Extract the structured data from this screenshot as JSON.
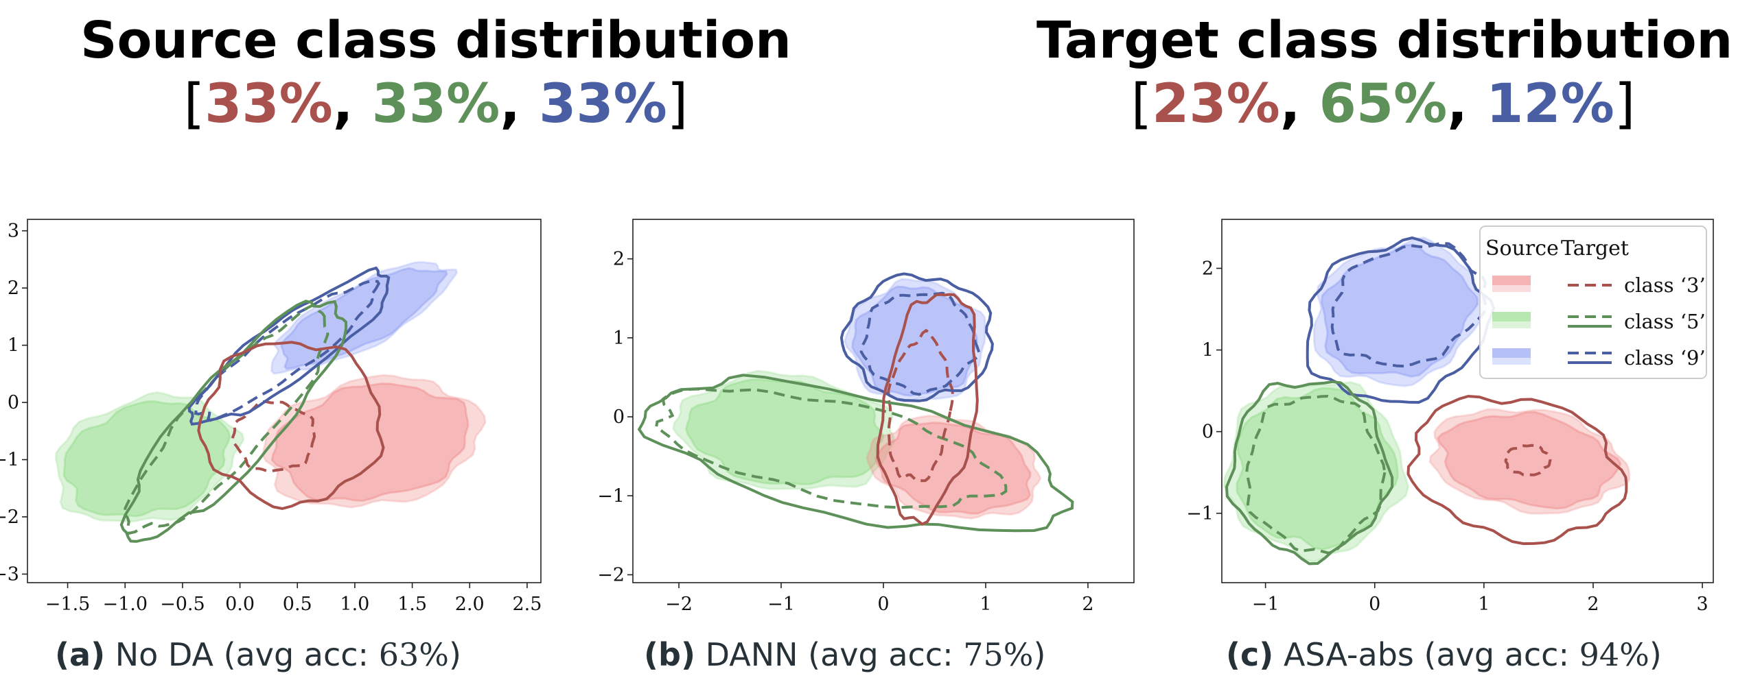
{
  "headings": {
    "source": {
      "title": "Source class distribution",
      "p1": "33%",
      "p2": "33%",
      "p3": "33%"
    },
    "target": {
      "title": "Target class distribution",
      "p1": "23%",
      "p2": "65%",
      "p3": "12%"
    },
    "open_bracket": "[",
    "close_bracket": "]",
    "separator": ","
  },
  "colors": {
    "class3": "#a9524d",
    "class5": "#5e9159",
    "class9": "#4a5fa3",
    "fill3": "#f08a8a",
    "fill5": "#8fdb86",
    "fill9": "#8e9ef5"
  },
  "legend": {
    "source_header": "Source",
    "target_header": "Target",
    "entries": [
      {
        "label": "class ‘3’",
        "color": "class3"
      },
      {
        "label": "class ‘5’",
        "color": "class5"
      },
      {
        "label": "class ‘9’",
        "color": "class9"
      }
    ]
  },
  "captions": {
    "a": {
      "letter": "(a)",
      "name": "No DA",
      "pre": "(avg acc:",
      "value": "63%",
      "post": ")"
    },
    "b": {
      "letter": "(b)",
      "name": "DANN",
      "pre": "(avg acc:",
      "value": "75%",
      "post": ")"
    },
    "c": {
      "letter": "(c)",
      "name": "ASA-abs",
      "pre": "(avg acc:",
      "value": "94%",
      "post": ")"
    }
  },
  "chart_data": [
    {
      "type": "contour",
      "id": "a",
      "xlim": [
        -1.85,
        2.62
      ],
      "ylim": [
        -3.15,
        3.2
      ],
      "xticks": [
        -1.5,
        -1.0,
        -0.5,
        0.0,
        0.5,
        1.0,
        1.5,
        2.0,
        2.5
      ],
      "xtick_labels": [
        "−1.5",
        "−1.0",
        "−0.5",
        "0.0",
        "0.5",
        "1.0",
        "1.5",
        "2.0",
        "2.5"
      ],
      "yticks": [
        -3,
        -2,
        -1,
        0,
        1,
        2,
        3
      ],
      "ytick_labels": [
        "−3",
        "−2",
        "−1",
        "0",
        "1",
        "2",
        "3"
      ],
      "source_fill": [
        {
          "cls": "class9",
          "cx": 1.05,
          "cy": 1.5,
          "rx": 0.78,
          "ry": 0.48,
          "angle": 28
        },
        {
          "cls": "class5",
          "cx": -0.82,
          "cy": -1.0,
          "rx": 0.72,
          "ry": 0.95,
          "angle": 15
        },
        {
          "cls": "class3",
          "cx": 1.15,
          "cy": -0.7,
          "rx": 0.85,
          "ry": 0.98,
          "angle": 10
        }
      ],
      "target_solid": [
        {
          "cls": "class9",
          "cx": 0.45,
          "cy": 0.95,
          "rx": 1.05,
          "ry": 0.52,
          "angle": 36
        },
        {
          "cls": "class5",
          "cx": -0.05,
          "cy": -0.3,
          "rx": 1.35,
          "ry": 0.78,
          "angle": 48
        },
        {
          "cls": "class3",
          "cx": 0.45,
          "cy": -0.35,
          "rx": 0.78,
          "ry": 1.42,
          "angle": 0
        }
      ],
      "target_dashed": [
        {
          "cls": "class9",
          "cx": 0.4,
          "cy": 0.9,
          "rx": 0.95,
          "ry": 0.42,
          "angle": 36
        },
        {
          "cls": "class5",
          "cx": -0.1,
          "cy": -0.35,
          "rx": 1.25,
          "ry": 0.68,
          "angle": 48
        },
        {
          "cls": "class3",
          "cx": 0.3,
          "cy": -0.6,
          "rx": 0.35,
          "ry": 0.6,
          "angle": 0
        }
      ]
    },
    {
      "type": "contour",
      "id": "b",
      "xlim": [
        -2.45,
        2.45
      ],
      "ylim": [
        -2.1,
        2.5
      ],
      "xticks": [
        -2,
        -1,
        0,
        1,
        2
      ],
      "xtick_labels": [
        "−2",
        "−1",
        "0",
        "1",
        "2"
      ],
      "yticks": [
        -2,
        -1,
        0,
        1,
        2
      ],
      "ytick_labels": [
        "−2",
        "−1",
        "0",
        "1",
        "2"
      ],
      "source_fill": [
        {
          "cls": "class9",
          "cx": 0.32,
          "cy": 0.95,
          "rx": 0.6,
          "ry": 0.68,
          "angle": 0
        },
        {
          "cls": "class5",
          "cx": -0.95,
          "cy": -0.2,
          "rx": 0.95,
          "ry": 0.65,
          "angle": -5
        },
        {
          "cls": "class3",
          "cx": 0.7,
          "cy": -0.65,
          "rx": 0.75,
          "ry": 0.55,
          "angle": -10
        }
      ],
      "target_solid": [
        {
          "cls": "class9",
          "cx": 0.35,
          "cy": 1.0,
          "rx": 0.72,
          "ry": 0.78,
          "angle": 0
        },
        {
          "cls": "class5",
          "cx": -0.25,
          "cy": -0.5,
          "rx": 2.1,
          "ry": 0.78,
          "angle": -12
        },
        {
          "cls": "class3",
          "cx": 0.45,
          "cy": 0.15,
          "rx": 0.45,
          "ry": 1.45,
          "angle": -8
        }
      ],
      "target_dashed": [
        {
          "cls": "class9",
          "cx": 0.35,
          "cy": 0.95,
          "rx": 0.55,
          "ry": 0.62,
          "angle": 0
        },
        {
          "cls": "class5",
          "cx": -0.55,
          "cy": -0.4,
          "rx": 1.7,
          "ry": 0.6,
          "angle": -12
        },
        {
          "cls": "class3",
          "cx": 0.35,
          "cy": 0.1,
          "rx": 0.3,
          "ry": 0.92,
          "angle": -5
        }
      ]
    },
    {
      "type": "contour",
      "id": "c",
      "xlim": [
        -1.4,
        3.1
      ],
      "ylim": [
        -1.85,
        2.6
      ],
      "xticks": [
        -1,
        0,
        1,
        2,
        3
      ],
      "xtick_labels": [
        "−1",
        "0",
        "1",
        "2",
        "3"
      ],
      "yticks": [
        -1,
        0,
        1,
        2
      ],
      "ytick_labels": [
        "−1",
        "0",
        "1",
        "2"
      ],
      "source_fill": [
        {
          "cls": "class9",
          "cx": 0.2,
          "cy": 1.45,
          "rx": 0.7,
          "ry": 0.75,
          "angle": 20
        },
        {
          "cls": "class5",
          "cx": -0.55,
          "cy": -0.45,
          "rx": 0.72,
          "ry": 0.95,
          "angle": 0
        },
        {
          "cls": "class3",
          "cx": 1.4,
          "cy": -0.35,
          "rx": 0.8,
          "ry": 0.55,
          "angle": -8
        }
      ],
      "target_solid": [
        {
          "cls": "class9",
          "cx": 0.2,
          "cy": 1.35,
          "rx": 0.85,
          "ry": 0.95,
          "angle": 22
        },
        {
          "cls": "class5",
          "cx": -0.6,
          "cy": -0.45,
          "rx": 0.72,
          "ry": 1.08,
          "angle": 0
        },
        {
          "cls": "class3",
          "cx": 1.3,
          "cy": -0.45,
          "rx": 0.98,
          "ry": 0.85,
          "angle": -12
        }
      ],
      "target_dashed": [
        {
          "cls": "class9",
          "cx": 0.3,
          "cy": 1.55,
          "rx": 0.72,
          "ry": 0.7,
          "angle": 20
        },
        {
          "cls": "class5",
          "cx": -0.55,
          "cy": -0.5,
          "rx": 0.62,
          "ry": 0.95,
          "angle": 0
        },
        {
          "cls": "class3",
          "cx": 1.4,
          "cy": -0.35,
          "rx": 0.2,
          "ry": 0.18,
          "angle": 0
        }
      ]
    }
  ]
}
